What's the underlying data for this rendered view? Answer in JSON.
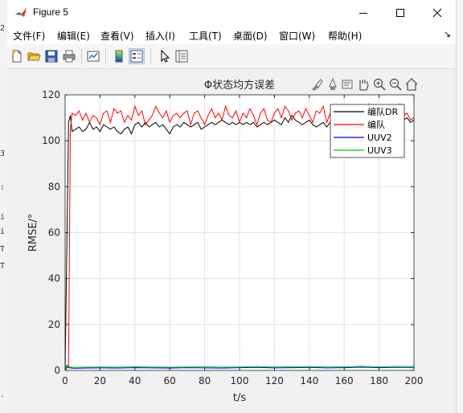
{
  "window": {
    "title": "Figure 5"
  },
  "menu": {
    "items": [
      "文件(F)",
      "编辑(E)",
      "查看(V)",
      "插入(I)",
      "工具(T)",
      "桌面(D)",
      "窗口(W)",
      "帮助(H)"
    ],
    "dock_glyph": "↘"
  },
  "toolbar": {
    "icons": [
      "new-figure-icon",
      "open-file-icon",
      "save-icon",
      "print-icon",
      "link-plot-icon",
      "insert-colorbar-icon",
      "insert-legend-icon",
      "edit-plot-icon",
      "property-inspector-icon"
    ]
  },
  "axes_toolbar": {
    "icons": [
      "brush-icon",
      "data-tips-icon",
      "rotate-icon",
      "pan-icon",
      "zoom-in-icon",
      "zoom-out-icon",
      "home-icon"
    ]
  },
  "left_edge_fragments": [
    "2",
    "3",
    ":",
    "i",
    "i",
    "T",
    "T",
    "-"
  ],
  "chart_data": {
    "type": "line",
    "title": "Φ状态均方误差",
    "xlabel": "t/s",
    "ylabel": "RMSE/°",
    "xlim": [
      0,
      200
    ],
    "ylim": [
      0,
      120
    ],
    "xticks": [
      0,
      20,
      40,
      60,
      80,
      100,
      120,
      140,
      160,
      180,
      200
    ],
    "yticks": [
      0,
      20,
      40,
      60,
      80,
      100,
      120
    ],
    "grid": true,
    "legend_position": "top-right",
    "series": [
      {
        "name": "编队DR",
        "color": "#000000",
        "x": [
          0,
          2,
          3,
          4,
          6,
          8,
          10,
          12,
          14,
          16,
          18,
          20,
          22,
          24,
          26,
          28,
          30,
          32,
          34,
          36,
          38,
          40,
          42,
          44,
          46,
          48,
          50,
          52,
          54,
          56,
          58,
          60,
          62,
          64,
          66,
          68,
          70,
          72,
          74,
          76,
          78,
          80,
          82,
          84,
          86,
          88,
          90,
          92,
          94,
          96,
          98,
          100,
          102,
          104,
          106,
          108,
          110,
          112,
          114,
          116,
          118,
          120,
          122,
          124,
          126,
          128,
          130,
          132,
          134,
          136,
          138,
          140,
          142,
          144,
          146,
          148,
          150,
          152,
          154,
          156,
          158,
          160,
          162,
          164,
          166,
          168,
          170,
          172,
          174,
          176,
          178,
          180,
          182,
          184,
          186,
          188,
          190,
          192,
          194,
          196,
          198,
          200
        ],
        "y": [
          0,
          108,
          111,
          104,
          105,
          106,
          104,
          105,
          108,
          105,
          106,
          104,
          107,
          106,
          105,
          106,
          104,
          103,
          105,
          106,
          103,
          107,
          108,
          106,
          108,
          106,
          107,
          108,
          106,
          107,
          105,
          103,
          106,
          107,
          106,
          108,
          107,
          106,
          107,
          108,
          105,
          106,
          107,
          108,
          107,
          108,
          109,
          108,
          107,
          108,
          107,
          108,
          107,
          108,
          107,
          108,
          106,
          107,
          108,
          107,
          108,
          109,
          108,
          107,
          110,
          108,
          111,
          109,
          108,
          107,
          108,
          109,
          107,
          106,
          107,
          108,
          106,
          108,
          107,
          108,
          107,
          108,
          109,
          108,
          107,
          110,
          108,
          109,
          110,
          108,
          109,
          110,
          108,
          109,
          110,
          108,
          111,
          110,
          109,
          110,
          108,
          109
        ]
      },
      {
        "name": "编队",
        "color": "#ff0000",
        "x": [
          0,
          2,
          3,
          4,
          6,
          8,
          10,
          12,
          14,
          16,
          18,
          20,
          22,
          24,
          26,
          28,
          30,
          32,
          34,
          36,
          38,
          40,
          42,
          44,
          46,
          48,
          50,
          52,
          54,
          56,
          58,
          60,
          62,
          64,
          66,
          68,
          70,
          72,
          74,
          76,
          78,
          80,
          82,
          84,
          86,
          88,
          90,
          92,
          94,
          96,
          98,
          100,
          102,
          104,
          106,
          108,
          110,
          112,
          114,
          116,
          118,
          120,
          122,
          124,
          126,
          128,
          130,
          132,
          134,
          136,
          138,
          140,
          142,
          144,
          146,
          148,
          150,
          152,
          154,
          156,
          158,
          160,
          162,
          164,
          166,
          168,
          170,
          172,
          174,
          176,
          178,
          180,
          182,
          184,
          186,
          188,
          190,
          192,
          194,
          196,
          198,
          200
        ],
        "y": [
          0,
          2,
          105,
          112,
          111,
          113,
          109,
          112,
          108,
          111,
          110,
          107,
          112,
          113,
          108,
          114,
          112,
          113,
          108,
          111,
          109,
          115,
          111,
          113,
          107,
          109,
          111,
          115,
          112,
          110,
          113,
          108,
          111,
          112,
          110,
          112,
          113,
          107,
          112,
          113,
          110,
          107,
          111,
          114,
          110,
          112,
          109,
          115,
          111,
          110,
          113,
          108,
          112,
          110,
          114,
          111,
          107,
          112,
          114,
          109,
          108,
          112,
          114,
          110,
          115,
          113,
          109,
          112,
          113,
          110,
          114,
          111,
          108,
          113,
          112,
          115,
          108,
          112,
          109,
          113,
          114,
          111,
          115,
          110,
          112,
          114,
          109,
          113,
          116,
          111,
          110,
          114,
          112,
          115,
          110,
          111,
          113,
          116,
          111,
          112,
          109,
          110
        ]
      },
      {
        "name": "UUV2",
        "color": "#0000ff",
        "x": [
          0,
          1,
          2,
          5,
          10,
          20,
          30,
          40,
          50,
          60,
          70,
          80,
          90,
          100,
          110,
          120,
          130,
          140,
          150,
          160,
          170,
          180,
          190,
          200
        ],
        "y": [
          0,
          2,
          1.2,
          0.9,
          1.0,
          1.1,
          1.0,
          1.2,
          1.1,
          1.0,
          1.2,
          1.1,
          1.0,
          1.2,
          1.3,
          1.1,
          1.2,
          1.3,
          1.1,
          1.2,
          1.4,
          1.2,
          1.3,
          1.3
        ]
      },
      {
        "name": "UUV3",
        "color": "#00cc00",
        "x": [
          0,
          1,
          2,
          5,
          10,
          20,
          30,
          40,
          50,
          60,
          70,
          80,
          90,
          100,
          110,
          120,
          130,
          140,
          150,
          160,
          170,
          180,
          190,
          200
        ],
        "y": [
          0,
          2.5,
          1.6,
          1.3,
          1.4,
          1.5,
          1.4,
          1.6,
          1.5,
          1.4,
          1.5,
          1.6,
          1.4,
          1.5,
          1.7,
          1.5,
          1.6,
          1.7,
          1.5,
          1.6,
          1.8,
          1.6,
          1.7,
          1.7
        ]
      }
    ]
  }
}
